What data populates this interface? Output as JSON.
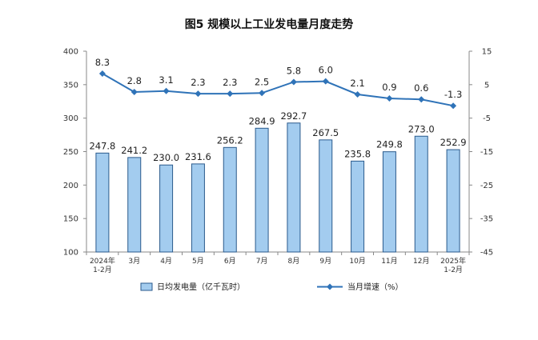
{
  "chart_data": {
    "type": "bar",
    "title": "图5  规模以上工业发电量月度走势",
    "categories": [
      [
        "2024年",
        "1-2月"
      ],
      [
        "3月"
      ],
      [
        "4月"
      ],
      [
        "5月"
      ],
      [
        "6月"
      ],
      [
        "7月"
      ],
      [
        "8月"
      ],
      [
        "9月"
      ],
      [
        "10月"
      ],
      [
        "11月"
      ],
      [
        "12月"
      ],
      [
        "2025年",
        "1-2月"
      ]
    ],
    "series": [
      {
        "name": "日均发电量（亿千瓦时）",
        "type": "bar",
        "axis": "left",
        "values": [
          247.8,
          241.2,
          230.0,
          231.6,
          256.2,
          284.9,
          292.7,
          267.5,
          235.8,
          249.8,
          273.0,
          252.9
        ],
        "labels": [
          "247.8",
          "241.2",
          "230.0",
          "231.6",
          "256.2",
          "284.9",
          "292.7",
          "267.5",
          "235.8",
          "249.8",
          "273.0",
          "252.9"
        ]
      },
      {
        "name": "当月增速（%）",
        "type": "line",
        "axis": "right",
        "values": [
          8.3,
          2.8,
          3.1,
          2.3,
          2.3,
          2.5,
          5.8,
          6.0,
          2.1,
          0.9,
          0.6,
          -1.3
        ],
        "labels": [
          "8.3",
          "2.8",
          "3.1",
          "2.3",
          "2.3",
          "2.5",
          "5.8",
          "6.0",
          "2.1",
          "0.9",
          "0.6",
          "-1.3"
        ]
      }
    ],
    "y_left": {
      "range": [
        100,
        400
      ],
      "ticks": [
        "100",
        "150",
        "200",
        "250",
        "300",
        "350",
        "400"
      ]
    },
    "y_right": {
      "range": [
        -45,
        15
      ],
      "ticks": [
        "-45",
        "-35",
        "-25",
        "-15",
        "-5",
        "5",
        "15"
      ]
    },
    "grid": false,
    "legend_position": "bottom",
    "colors": {
      "bar_fill": "#a3ccef",
      "bar_stroke": "#2a5a8c",
      "line": "#2f73b8"
    }
  }
}
